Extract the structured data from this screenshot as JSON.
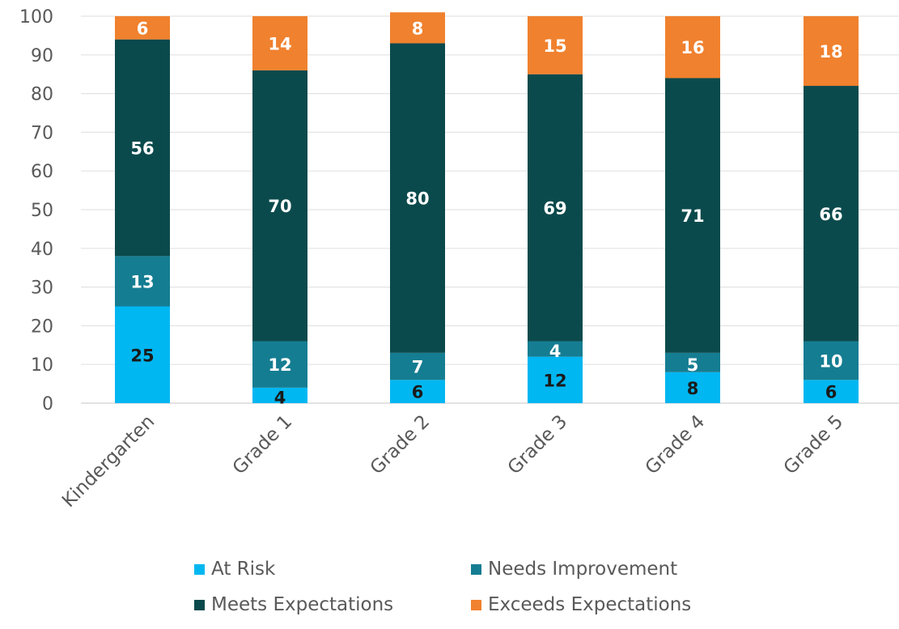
{
  "chart_data": {
    "type": "bar",
    "stacked": true,
    "title": "",
    "xlabel": "",
    "ylabel": "",
    "ylim": [
      0,
      100
    ],
    "yticks": [
      0,
      10,
      20,
      30,
      40,
      50,
      60,
      70,
      80,
      90,
      100
    ],
    "grid": true,
    "legend_position": "bottom",
    "categories": [
      "Kindergarten",
      "Grade 1",
      "Grade 2",
      "Grade 3",
      "Grade 4",
      "Grade 5"
    ],
    "series": [
      {
        "name": "At Risk",
        "color": "#00B7F1",
        "label_color": "#1A1A1A",
        "values": [
          25,
          4,
          6,
          12,
          8,
          6
        ]
      },
      {
        "name": "Needs Improvement",
        "color": "#157D92",
        "label_color": "#FFFFFF",
        "values": [
          13,
          12,
          7,
          4,
          5,
          10
        ]
      },
      {
        "name": "Meets Expectations",
        "color": "#0B4A4C",
        "label_color": "#FFFFFF",
        "values": [
          56,
          70,
          80,
          69,
          71,
          66
        ]
      },
      {
        "name": "Exceeds Expectations",
        "color": "#F0812E",
        "label_color": "#FFFFFF",
        "values": [
          6,
          14,
          8,
          15,
          16,
          18
        ]
      }
    ]
  }
}
